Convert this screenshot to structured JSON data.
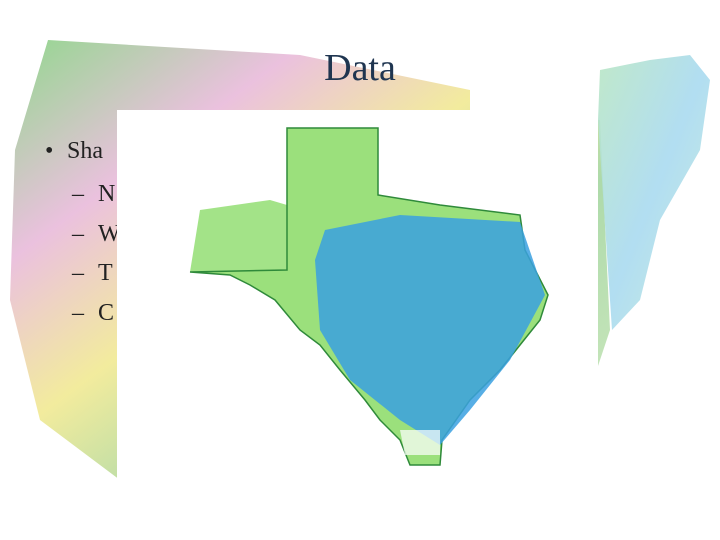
{
  "slide": {
    "title": "Data",
    "bullets": [
      {
        "text": "Sha",
        "level": 1
      },
      {
        "text": "N",
        "level": 2
      },
      {
        "text": "W",
        "level": 2
      },
      {
        "text": "T",
        "level": 2
      },
      {
        "text": "C",
        "level": 2
      }
    ]
  }
}
